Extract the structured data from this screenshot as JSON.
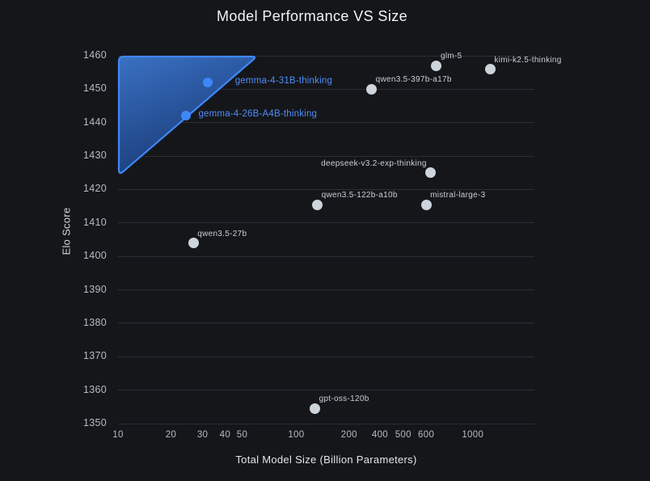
{
  "title": "Model Performance VS Size",
  "axes": {
    "x": {
      "label": "Total Model Size (Billion Parameters)",
      "scale": "log",
      "ticks": [
        {
          "label": "10",
          "fx": 0.0
        },
        {
          "label": "20",
          "fx": 0.127
        },
        {
          "label": "30",
          "fx": 0.203
        },
        {
          "label": "40",
          "fx": 0.257
        },
        {
          "label": "50",
          "fx": 0.298
        },
        {
          "label": "100",
          "fx": 0.428
        },
        {
          "label": "200",
          "fx": 0.555
        },
        {
          "label": "400",
          "fx": 0.629
        },
        {
          "label": "500",
          "fx": 0.685
        },
        {
          "label": "600",
          "fx": 0.74
        },
        {
          "label": "1000",
          "fx": 0.852
        }
      ]
    },
    "y": {
      "label": "Elo Score",
      "min": 1350,
      "max": 1460,
      "ticks": [
        1460,
        1450,
        1440,
        1430,
        1420,
        1410,
        1400,
        1390,
        1380,
        1370,
        1360,
        1350
      ]
    }
  },
  "colors": {
    "background": "#15161a",
    "grid": "#2b2e34",
    "tick_text": "#b6bac1",
    "point": "#cdd4dc",
    "point_label": "#c9ced6",
    "highlight": "#3f87f7",
    "highlight_label": "#4f8ef7",
    "region_fill_top": "#3e7bd6",
    "region_fill_bottom": "#1a3e7e"
  },
  "chart_data": {
    "type": "scatter",
    "title": "Model Performance VS Size",
    "xlabel": "Total Model Size (Billion Parameters)",
    "ylabel": "Elo Score",
    "x_scale": "log",
    "xlim": [
      10,
      2150
    ],
    "ylim": [
      1350,
      1460
    ],
    "grid": "horizontal-only",
    "points": [
      {
        "label": "gemma-4-31B-thinking",
        "size_b": 31,
        "elo": 1452,
        "fx": 0.215,
        "highlight": true,
        "label_pos": "right",
        "label_dx": 34
      },
      {
        "label": "gemma-4-26B-A4B-thinking",
        "size_b": 26,
        "elo": 1442,
        "fx": 0.164,
        "highlight": true,
        "label_pos": "right",
        "label_dx": 15
      },
      {
        "label": "glm-5",
        "size_b": 650,
        "elo": 1457,
        "fx": 0.765,
        "highlight": false,
        "label_pos": "top-right"
      },
      {
        "label": "kimi-k2.5-thinking",
        "size_b": 1200,
        "elo": 1456,
        "fx": 0.894,
        "highlight": false,
        "label_pos": "top-right"
      },
      {
        "label": "qwen3.5-397b-a17b",
        "size_b": 397,
        "elo": 1450,
        "fx": 0.609,
        "highlight": false,
        "label_pos": "top-right"
      },
      {
        "label": "deepseek-v3.2-exp-thinking",
        "size_b": 685,
        "elo": 1425,
        "fx": 0.751,
        "highlight": false,
        "label_pos": "top-left"
      },
      {
        "label": "qwen3.5-122b-a10b",
        "size_b": 122,
        "elo": 1415.5,
        "fx": 0.479,
        "highlight": false,
        "label_pos": "top-right"
      },
      {
        "label": "mistral-large-3",
        "size_b": 675,
        "elo": 1415.5,
        "fx": 0.74,
        "highlight": false,
        "label_pos": "top-right"
      },
      {
        "label": "qwen3.5-27b",
        "size_b": 27,
        "elo": 1404,
        "fx": 0.181,
        "highlight": false,
        "label_pos": "top-right"
      },
      {
        "label": "gpt-oss-120b",
        "size_b": 120,
        "elo": 1354.5,
        "fx": 0.473,
        "highlight": false,
        "label_pos": "top-right"
      }
    ],
    "highlight_region": {
      "shape": "triangle",
      "x_range_b": [
        10,
        58
      ],
      "elo_range": [
        1424.5,
        1460
      ],
      "vertices": [
        {
          "fx": 0.0,
          "elo": 1460
        },
        {
          "fx": 0.3314,
          "elo": 1460
        },
        {
          "fx": 0.0,
          "elo": 1424.5
        }
      ]
    }
  }
}
